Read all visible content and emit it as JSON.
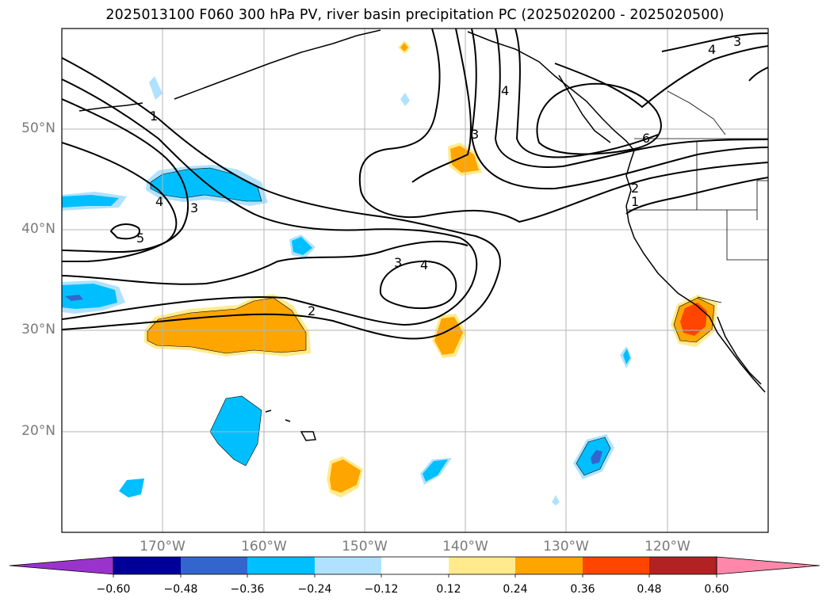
{
  "title": "2025013100 F060 300 hPa PV, river basin precipitation PC (2025020200 - 2025020500)",
  "map": {
    "lon_range": [
      -180,
      -110
    ],
    "lat_range": [
      10,
      60
    ],
    "lat_ticks": [
      {
        "value": 50,
        "label": "50°N"
      },
      {
        "value": 40,
        "label": "40°N"
      },
      {
        "value": 30,
        "label": "30°N"
      },
      {
        "value": 20,
        "label": "20°N"
      }
    ],
    "lon_ticks": [
      {
        "value": -170,
        "label": "170°W"
      },
      {
        "value": -160,
        "label": "160°W"
      },
      {
        "value": -150,
        "label": "150°W"
      },
      {
        "value": -140,
        "label": "140°W"
      },
      {
        "value": -130,
        "label": "130°W"
      },
      {
        "value": -120,
        "label": "120°W"
      }
    ],
    "grid": true,
    "contour_labels": [
      "1",
      "1",
      "2",
      "2",
      "3",
      "3",
      "3",
      "3",
      "4",
      "4",
      "4",
      "4",
      "5",
      "6"
    ]
  },
  "colorbar": {
    "colors": [
      "#9933cc",
      "#000099",
      "#3366cc",
      "#00bfff",
      "#b0e2ff",
      "#ffffff",
      "#ffeb8c",
      "#ffa500",
      "#ff4500",
      "#b22222",
      "#ff88aa"
    ],
    "tick_labels": [
      "−0.60",
      "−0.48",
      "−0.36",
      "−0.24",
      "−0.12",
      "0.12",
      "0.24",
      "0.36",
      "0.48",
      "0.60"
    ],
    "extend": "both"
  }
}
